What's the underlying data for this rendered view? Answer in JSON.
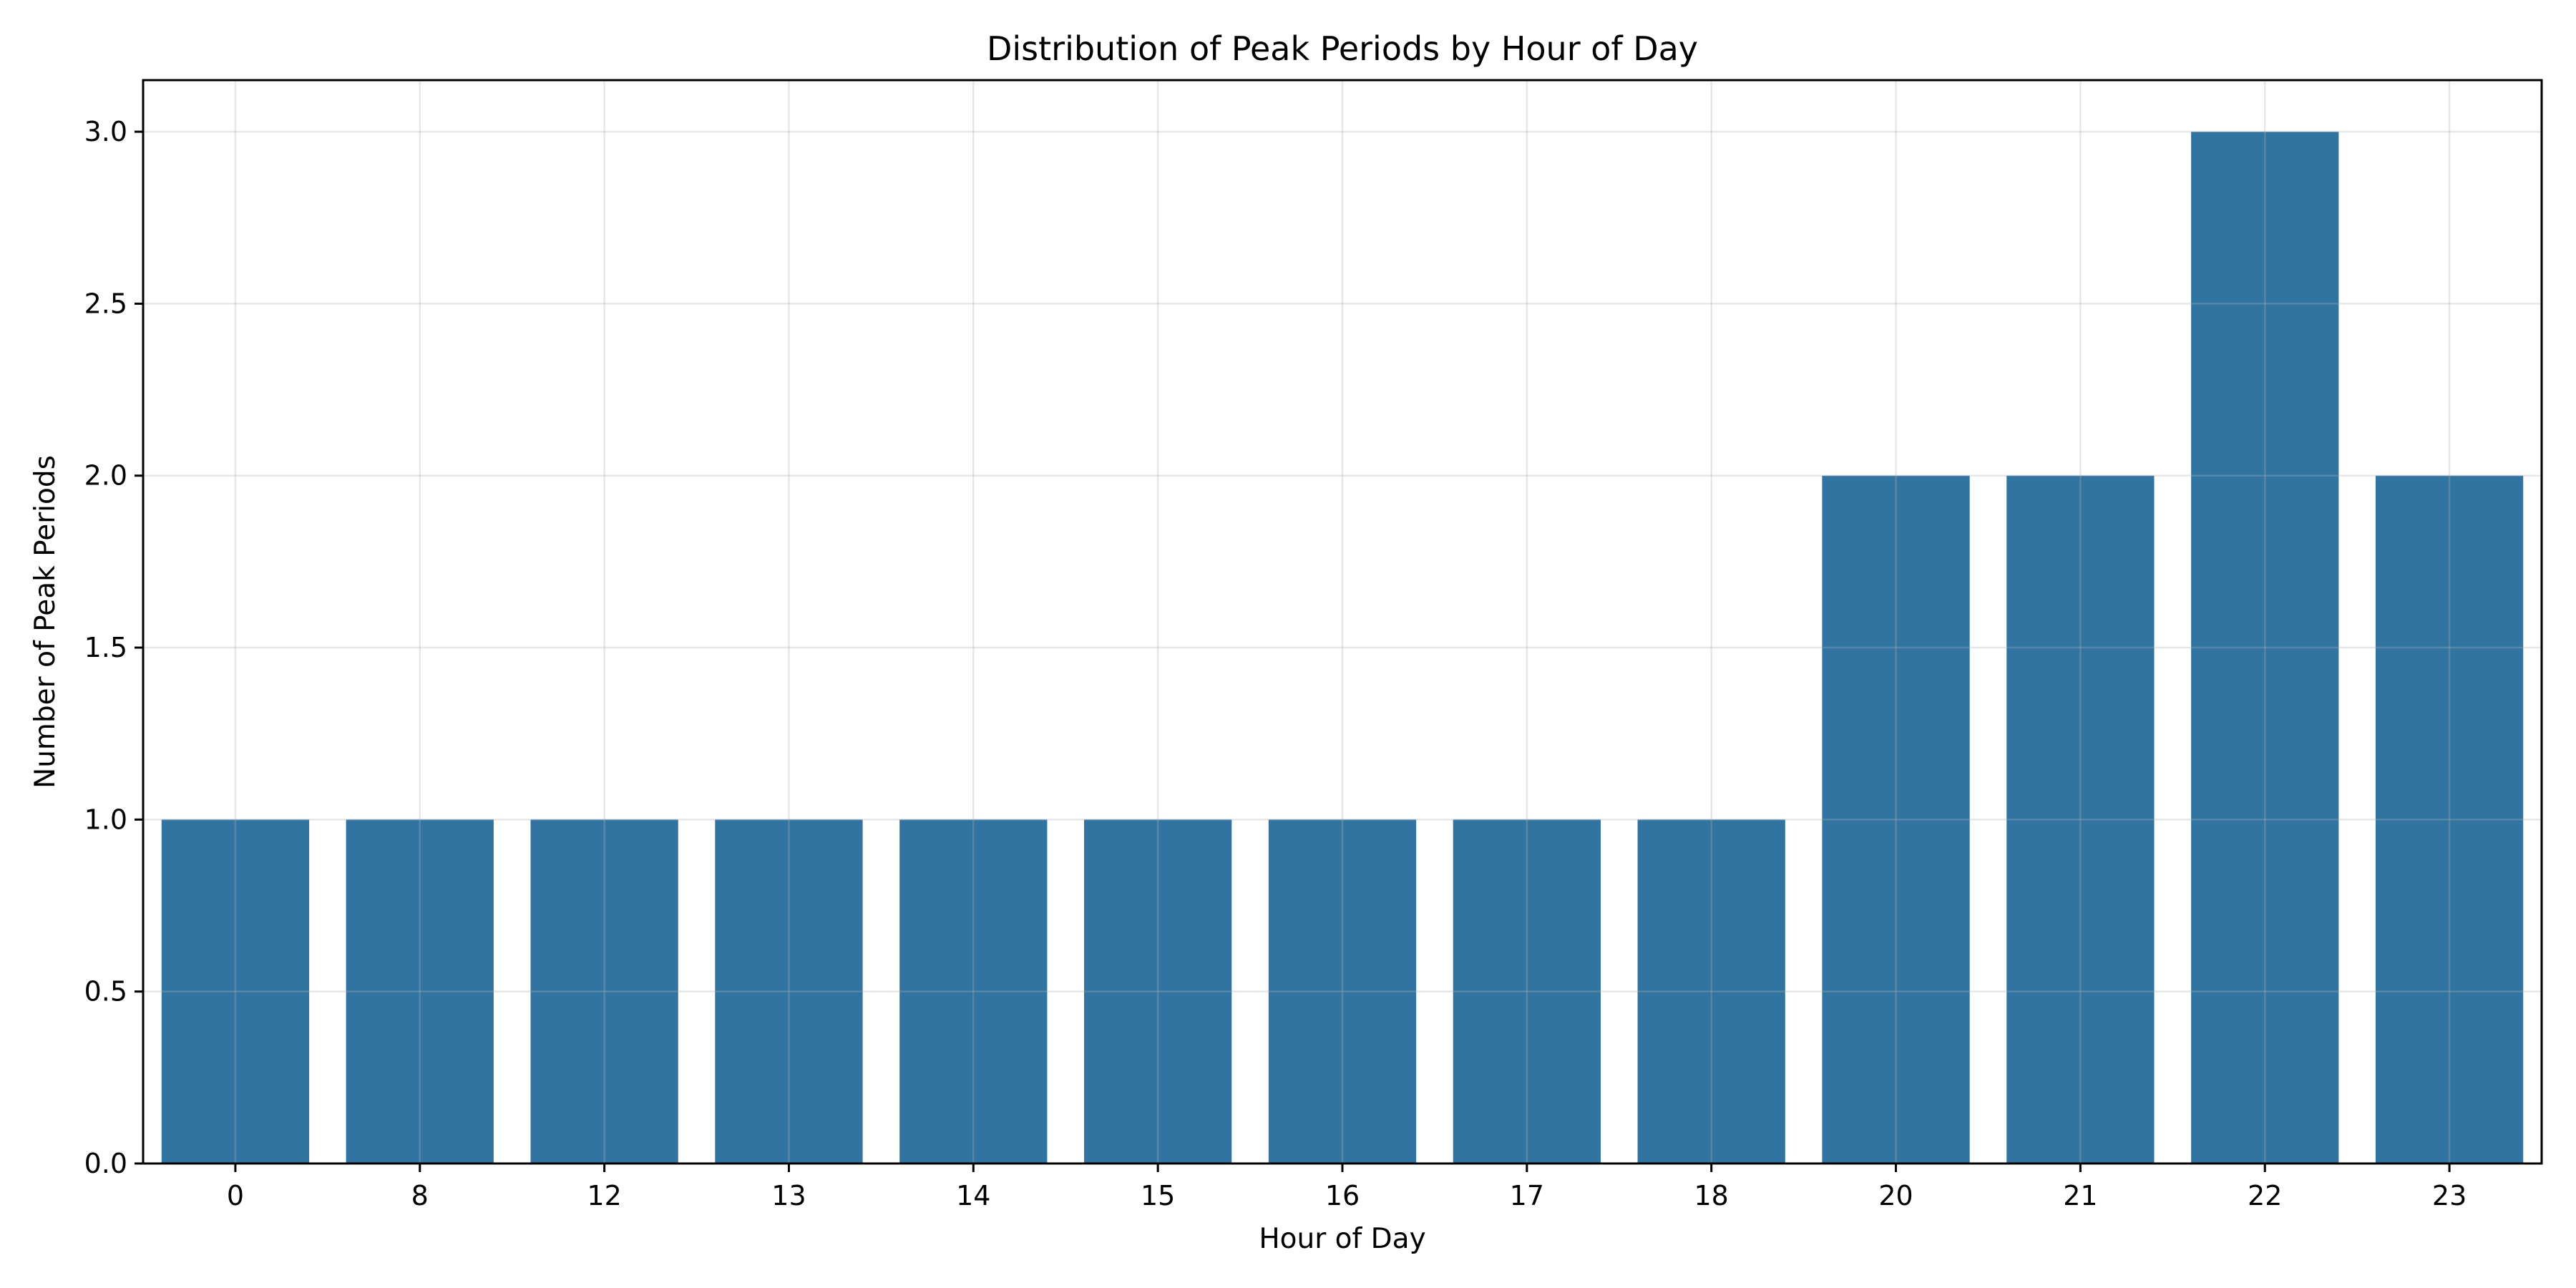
{
  "chart_data": {
    "type": "bar",
    "title": "Distribution of Peak Periods by Hour of Day",
    "xlabel": "Hour of Day",
    "ylabel": "Number of Peak Periods",
    "categories": [
      "0",
      "8",
      "12",
      "13",
      "14",
      "15",
      "16",
      "17",
      "18",
      "20",
      "21",
      "22",
      "23"
    ],
    "values": [
      1,
      1,
      1,
      1,
      1,
      1,
      1,
      1,
      1,
      2,
      2,
      3,
      2
    ],
    "ylim": [
      0,
      3.15
    ],
    "yticks": [
      "0.0",
      "0.5",
      "1.0",
      "1.5",
      "2.0",
      "2.5",
      "3.0"
    ],
    "grid": true,
    "bar_color": "#3274a1"
  }
}
